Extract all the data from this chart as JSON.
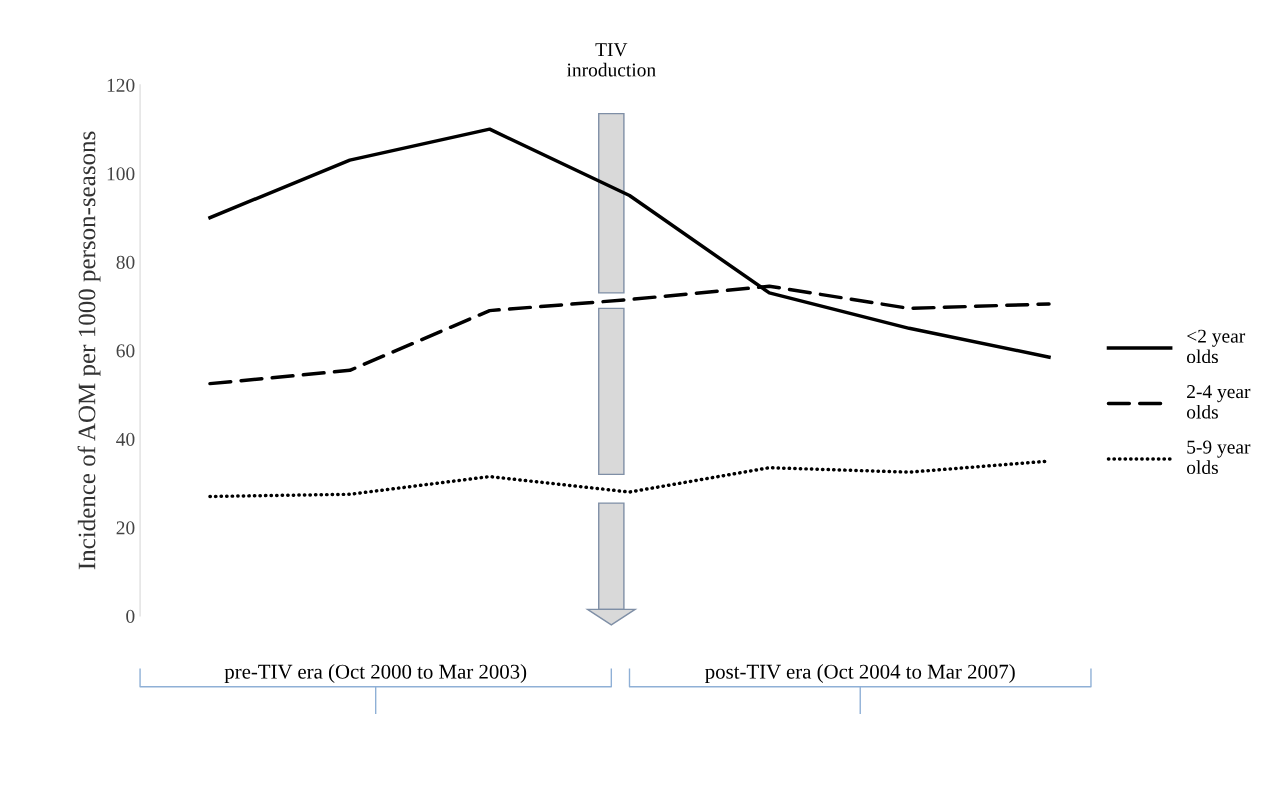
{
  "chart_data": {
    "type": "line",
    "ylabel": "Incidence of AOM per 1000 person-seasons",
    "categories": [
      null,
      null,
      null,
      null,
      null,
      null,
      null
    ],
    "series": [
      {
        "name": "<2 year olds",
        "color": "#000000",
        "line_style": "solid",
        "values": [
          90,
          103,
          110,
          95,
          73,
          65,
          58.5
        ]
      },
      {
        "name": "2-4 year olds",
        "color": "#000000",
        "line_style": "dashed",
        "values": [
          52.5,
          55.5,
          69,
          71.5,
          74.5,
          69.5,
          70.5
        ]
      },
      {
        "name": "5-9 year olds",
        "color": "#000000",
        "line_style": "dotted",
        "values": [
          27,
          27.5,
          31.5,
          28,
          33.5,
          32.5,
          35
        ]
      }
    ],
    "ylim": [
      0,
      120
    ],
    "yticks": [
      0,
      20,
      40,
      60,
      80,
      100,
      120
    ],
    "grid": false,
    "legend": "right",
    "marker": "none",
    "tick_labels": "y",
    "annotations": [
      "TIV\ninroduction",
      "pre-TIV era (Oct 2000 to Mar 2003)",
      "post-TIV era (Oct 2004 to Mar 2007)"
    ]
  }
}
